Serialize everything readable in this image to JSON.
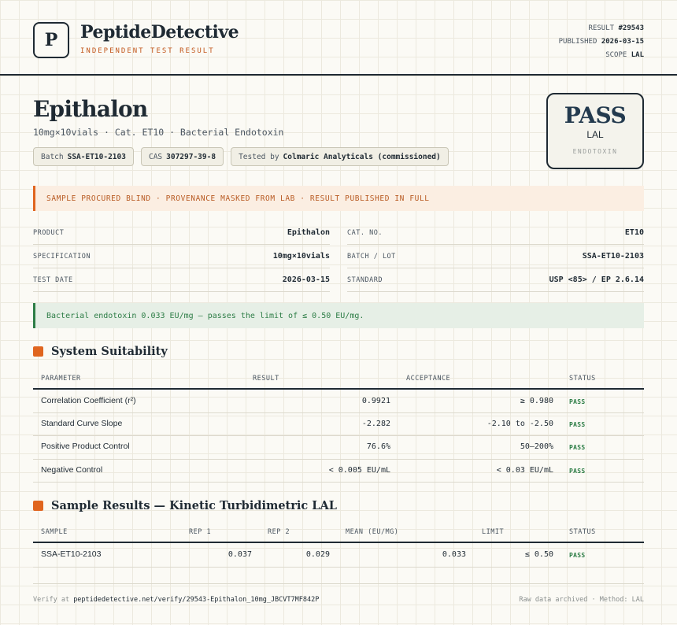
{
  "header": {
    "logo_letter": "P",
    "brand": "PeptideDetective",
    "brand_sub": "INDEPENDENT TEST RESULT",
    "meta": [
      {
        "label": "RESULT",
        "value": "#29543"
      },
      {
        "label": "PUBLISHED",
        "value": "2026-03-15"
      },
      {
        "label": "SCOPE",
        "value": "LAL"
      }
    ]
  },
  "product": {
    "title": "Epithalon",
    "subtitle": "10mg×10vials · Cat. ET10 · Bacterial Endotoxin",
    "chips": [
      {
        "label": "Batch",
        "value": "SSA-ET10-2103"
      },
      {
        "label": "CAS",
        "value": "307297-39-8"
      },
      {
        "label": "Tested by",
        "value": "Colmaric Analyticals (commissioned)"
      }
    ]
  },
  "verdict": {
    "main": "PASS",
    "method": "LAL",
    "category": "ENDOTOXIN"
  },
  "notice": "SAMPLE PROCURED BLIND · PROVENANCE MASKED FROM LAB · RESULT PUBLISHED IN FULL",
  "info": {
    "left": [
      {
        "label": "PRODUCT",
        "value": "Epithalon"
      },
      {
        "label": "SPECIFICATION",
        "value": "10mg×10vials"
      },
      {
        "label": "TEST DATE",
        "value": "2026-03-15"
      }
    ],
    "right": [
      {
        "label": "CAT. NO.",
        "value": "ET10"
      },
      {
        "label": "BATCH / LOT",
        "value": "SSA-ET10-2103"
      },
      {
        "label": "STANDARD",
        "value": "USP <85> / EP 2.6.14"
      }
    ]
  },
  "result_line": "Bacterial endotoxin 0.033 EU/mg — passes the limit of ≤ 0.50 EU/mg.",
  "suitability": {
    "title": "System Suitability",
    "headers": [
      "PARAMETER",
      "RESULT",
      "ACCEPTANCE",
      "STATUS"
    ],
    "rows": [
      {
        "parameter": "Correlation Coefficient (r²)",
        "result": "0.9921",
        "acceptance": "≥ 0.980",
        "status": "PASS"
      },
      {
        "parameter": "Standard Curve Slope",
        "result": "-2.282",
        "acceptance": "-2.10 to -2.50",
        "status": "PASS"
      },
      {
        "parameter": "Positive Product Control",
        "result": "76.6%",
        "acceptance": "50–200%",
        "status": "PASS"
      },
      {
        "parameter": "Negative Control",
        "result": "< 0.005 EU/mL",
        "acceptance": "< 0.03 EU/mL",
        "status": "PASS"
      }
    ]
  },
  "samples": {
    "title": "Sample Results — Kinetic Turbidimetric LAL",
    "headers": [
      "SAMPLE",
      "REP 1",
      "REP 2",
      "MEAN (EU/MG)",
      "LIMIT",
      "STATUS"
    ],
    "rows": [
      {
        "sample": "SSA-ET10-2103",
        "rep1": "0.037",
        "rep2": "0.029",
        "mean": "0.033",
        "limit": "≤ 0.50",
        "status": "PASS"
      }
    ]
  },
  "footer": {
    "verify_prefix": "Verify at",
    "verify_url": "peptidedetective.net/verify/29543-Epithalon_10mg_JBCVT7MF842P",
    "right": "Raw data archived · Method: LAL"
  },
  "colors": {
    "accent": "#e0651f",
    "pass_green": "#2d7d46",
    "ink": "#1f2a33"
  }
}
